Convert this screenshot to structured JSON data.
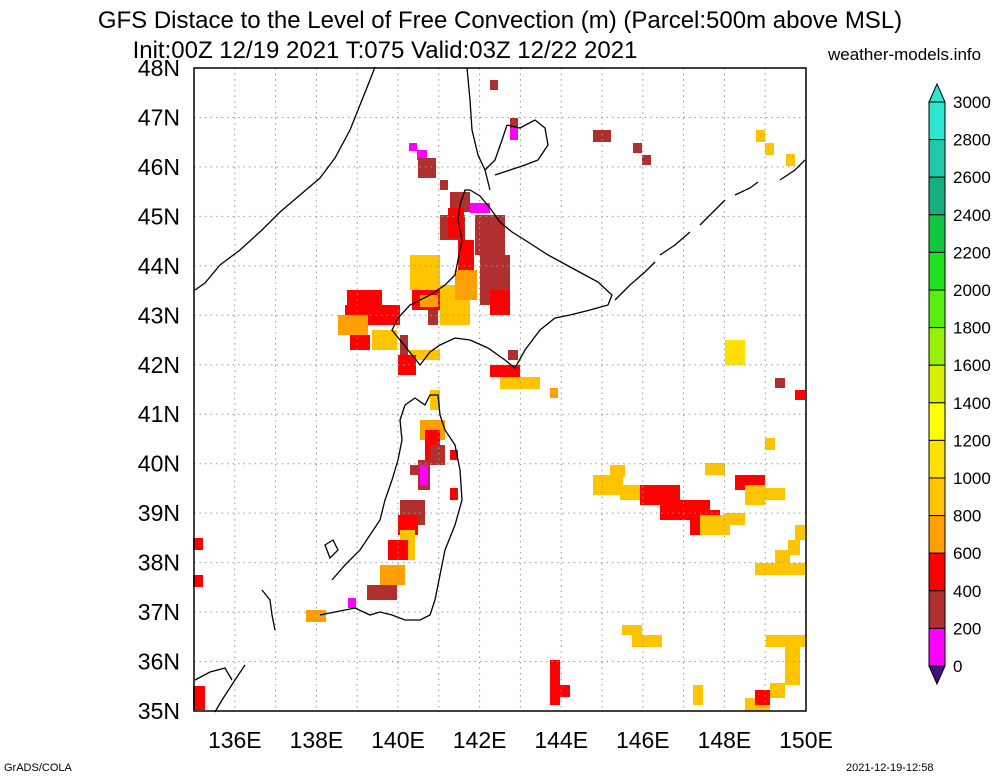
{
  "title": {
    "line1": "GFS Distace to the Level of Free Convection (m) (Parcel:500m above MSL)",
    "line2": "Init:00Z 12/19 2021 T:075 Valid:03Z 12/22 2021"
  },
  "site": "weather-models.info",
  "footer": {
    "left": "GrADS/COLA",
    "right": "2021-12-19-12:58"
  },
  "map": {
    "lat_labels": [
      "48N",
      "47N",
      "46N",
      "45N",
      "44N",
      "43N",
      "42N",
      "41N",
      "40N",
      "39N",
      "38N",
      "37N",
      "36N",
      "35N"
    ],
    "lon_labels": [
      "136E",
      "138E",
      "140E",
      "142E",
      "144E",
      "146E",
      "148E",
      "150E"
    ],
    "lat_range": [
      35,
      48
    ],
    "lon_range": [
      135,
      150
    ]
  },
  "colorbar": {
    "labels": [
      "3000",
      "2800",
      "2600",
      "2400",
      "2200",
      "2000",
      "1800",
      "1600",
      "1400",
      "1200",
      "1000",
      "800",
      "600",
      "400",
      "200",
      "0"
    ],
    "colors": [
      "#2ee5cf",
      "#22c9a8",
      "#16b080",
      "#10c840",
      "#20e020",
      "#58ee10",
      "#98f008",
      "#d8f000",
      "#ffff00",
      "#ffe000",
      "#ffc400",
      "#ffa000",
      "#ff0000",
      "#b03030",
      "#ff00ff",
      "#401080"
    ]
  },
  "field": {
    "colors": {
      "c200": "#ff00ff",
      "c400": "#b03030",
      "c600": "#ff0000",
      "c800": "#ffa000",
      "c1000": "#ffc400",
      "c1200": "#ffe000"
    }
  }
}
